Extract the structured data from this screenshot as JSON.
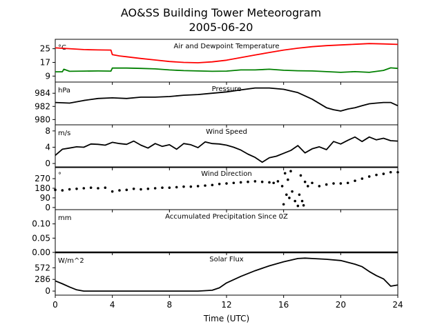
{
  "figure": {
    "title": "AO&SS Building Tower Meteorogram",
    "subtitle": "2005-06-20",
    "xlabel": "Time (UTC)",
    "x_ticks": [
      "0",
      "4",
      "8",
      "12",
      "16",
      "20",
      "24"
    ]
  },
  "chart_data": [
    {
      "type": "line",
      "title": "Air and Dewpoint Temperature",
      "unit": "°C",
      "xlim": [
        0,
        24
      ],
      "ylim": [
        5.5,
        30.5
      ],
      "yticks": [
        9,
        17,
        25
      ],
      "series": [
        {
          "color": "#ff0000",
          "x": [
            0,
            1,
            2,
            3,
            3.9,
            4.0,
            4.5,
            5,
            6,
            7,
            8,
            9,
            10,
            11,
            12,
            13,
            14,
            15,
            16,
            17,
            18,
            19,
            20,
            21,
            22,
            23,
            24
          ],
          "y": [
            25.5,
            25,
            24.5,
            24.3,
            24.2,
            21.5,
            20.8,
            20.3,
            19.3,
            18.4,
            17.5,
            17,
            16.8,
            17.3,
            18.3,
            19.8,
            21.3,
            22.8,
            24.2,
            25.3,
            26.2,
            26.8,
            27.2,
            27.6,
            28.0,
            27.8,
            27.5
          ]
        },
        {
          "color": "#008000",
          "x": [
            0,
            0.5,
            0.6,
            1,
            2,
            3,
            3.9,
            4.0,
            5,
            6,
            7,
            8,
            9,
            10,
            11,
            12,
            13,
            14,
            15,
            16,
            17,
            18,
            19,
            20,
            21,
            22,
            23,
            23.5,
            24
          ],
          "y": [
            11.5,
            11.5,
            13,
            11.8,
            11.9,
            12,
            11.9,
            13.7,
            13.7,
            13.5,
            13.2,
            12.6,
            12.2,
            12.0,
            11.8,
            11.9,
            12.6,
            12.6,
            13.0,
            12.4,
            12.1,
            12.0,
            11.6,
            11.2,
            11.6,
            11.2,
            12.3,
            13.8,
            13.5
          ]
        }
      ]
    },
    {
      "type": "line",
      "title": "Pressure",
      "unit": "hPa",
      "xlim": [
        0,
        24
      ],
      "ylim": [
        979.2,
        985.7
      ],
      "yticks": [
        980,
        982,
        984
      ],
      "series": [
        {
          "color": "#000000",
          "x": [
            0,
            1,
            2,
            3,
            4,
            5,
            6,
            7,
            8,
            9,
            10,
            11,
            12,
            13,
            14,
            15,
            16,
            17,
            18,
            19,
            19.5,
            20,
            20.5,
            21,
            21.5,
            22,
            22.5,
            23,
            23.5,
            24
          ],
          "y": [
            982.6,
            982.5,
            982.9,
            983.2,
            983.3,
            983.2,
            983.4,
            983.4,
            983.5,
            983.7,
            983.8,
            984.0,
            984.2,
            984.5,
            984.8,
            984.8,
            984.6,
            984.1,
            983.1,
            981.8,
            981.5,
            981.3,
            981.6,
            981.8,
            982.1,
            982.4,
            982.5,
            982.6,
            982.6,
            982.1
          ]
        }
      ]
    },
    {
      "type": "line",
      "title": "Wind Speed",
      "unit": "m/s",
      "xlim": [
        0,
        24
      ],
      "ylim": [
        -1,
        9.5
      ],
      "yticks": [
        0,
        4,
        8
      ],
      "series": [
        {
          "color": "#000000",
          "x": [
            0,
            0.5,
            1,
            1.5,
            2,
            2.5,
            3,
            3.5,
            4,
            4.5,
            5,
            5.5,
            6,
            6.5,
            7,
            7.5,
            8,
            8.5,
            9,
            9.5,
            10,
            10.5,
            11,
            11.5,
            12,
            12.5,
            13,
            13.5,
            14,
            14.5,
            15,
            15.5,
            16,
            16.5,
            17,
            17.5,
            18,
            18.5,
            19,
            19.5,
            20,
            20.5,
            21,
            21.5,
            22,
            22.5,
            23,
            23.5,
            24
          ],
          "y": [
            2.0,
            3.5,
            3.8,
            4.1,
            4.0,
            4.8,
            4.7,
            4.5,
            5.2,
            4.9,
            4.7,
            5.5,
            4.5,
            3.8,
            4.9,
            4.2,
            4.6,
            3.5,
            4.9,
            4.6,
            3.9,
            5.3,
            4.9,
            4.8,
            4.5,
            4.0,
            3.3,
            2.3,
            1.5,
            0.3,
            1.4,
            1.8,
            2.5,
            3.2,
            4.4,
            2.6,
            3.6,
            4.1,
            3.4,
            5.4,
            4.8,
            5.7,
            6.5,
            5.4,
            6.5,
            5.8,
            6.2,
            5.6,
            5.5
          ]
        }
      ]
    },
    {
      "type": "scatter",
      "title": "Wind Direction",
      "unit": "°",
      "xlim": [
        0,
        24
      ],
      "ylim": [
        -20,
        380
      ],
      "yticks": [
        0,
        90,
        180,
        270
      ],
      "series": [
        {
          "color": "#000000",
          "x": [
            0,
            0.5,
            1,
            1.5,
            2,
            2.5,
            3,
            3.5,
            4,
            4.5,
            5,
            5.5,
            6,
            6.5,
            7,
            7.5,
            8,
            8.5,
            9,
            9.5,
            10,
            10.5,
            11,
            11.5,
            12,
            12.5,
            13,
            13.5,
            14,
            14.5,
            15,
            15.3,
            15.6,
            15.9,
            16.0,
            16.1,
            16.2,
            16.3,
            16.4,
            16.5,
            16.6,
            16.8,
            17.0,
            17.1,
            17.2,
            17.3,
            17.4,
            17.5,
            17.7,
            18,
            18.5,
            19,
            19.5,
            20,
            20.5,
            21,
            21.5,
            22,
            22.5,
            23,
            23.5,
            24
          ],
          "y": [
            165,
            160,
            170,
            175,
            180,
            185,
            180,
            185,
            150,
            160,
            165,
            175,
            170,
            175,
            180,
            185,
            185,
            190,
            195,
            195,
            200,
            205,
            210,
            220,
            225,
            230,
            235,
            240,
            245,
            240,
            235,
            230,
            245,
            200,
            30,
            320,
            120,
            260,
            90,
            340,
            150,
            60,
            15,
            120,
            300,
            60,
            20,
            240,
            200,
            230,
            200,
            215,
            225,
            225,
            230,
            250,
            270,
            290,
            305,
            315,
            330,
            330
          ]
        }
      ]
    },
    {
      "type": "line",
      "title": "Accumulated Precipitation Since 0Z",
      "unit": "mm",
      "xlim": [
        0,
        24
      ],
      "ylim": [
        0,
        0.15
      ],
      "yticks": [
        0.0,
        0.05,
        0.1
      ],
      "series": [
        {
          "color": "#000000",
          "x": [
            0,
            24
          ],
          "y": [
            0,
            0
          ]
        }
      ]
    },
    {
      "type": "line",
      "title": "Solar Flux",
      "unit": "W/m^2",
      "xlim": [
        0,
        24
      ],
      "ylim": [
        -100,
        950
      ],
      "yticks": [
        0,
        286,
        572
      ],
      "series": [
        {
          "color": "#000000",
          "x": [
            0,
            0.5,
            1,
            1.5,
            2,
            3,
            4,
            5,
            6,
            7,
            8,
            9,
            10,
            11,
            11.5,
            12,
            13,
            14,
            15,
            16,
            17,
            17.5,
            18,
            19,
            20,
            21,
            21.5,
            22,
            22.5,
            23,
            23.5,
            24
          ],
          "y": [
            250,
            180,
            100,
            30,
            0,
            0,
            0,
            0,
            0,
            0,
            0,
            0,
            0,
            20,
            80,
            200,
            360,
            500,
            620,
            720,
            800,
            810,
            800,
            780,
            750,
            660,
            600,
            480,
            380,
            300,
            120,
            150
          ]
        }
      ]
    }
  ]
}
